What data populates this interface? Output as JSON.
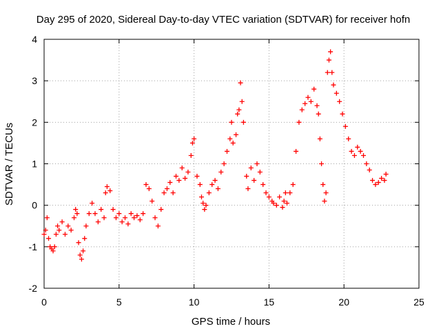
{
  "chart_data": {
    "type": "scatter",
    "title": "Day 295 of 2020, Sidereal Day-to-day VTEC variation (SDTVAR) for receiver hofn",
    "xlabel": "GPS time / hours",
    "ylabel": "SDTVAR / TECUs",
    "xlim": [
      0,
      25
    ],
    "ylim": [
      -2,
      4
    ],
    "grid": true,
    "marker": "+",
    "color": "#ff0000",
    "x_ticks": [
      "0",
      "5",
      "10",
      "15",
      "20",
      "25"
    ],
    "y_ticks": [
      "-2",
      "-1",
      "0",
      "1",
      "2",
      "3",
      "4"
    ],
    "series": [
      {
        "name": "SDTVAR",
        "points": [
          [
            0.0,
            -0.7
          ],
          [
            0.1,
            -0.6
          ],
          [
            0.2,
            -0.3
          ],
          [
            0.3,
            -0.8
          ],
          [
            0.4,
            -1.0
          ],
          [
            0.5,
            -1.05
          ],
          [
            0.6,
            -1.1
          ],
          [
            0.7,
            -1.0
          ],
          [
            0.8,
            -0.7
          ],
          [
            0.9,
            -0.5
          ],
          [
            1.0,
            -0.6
          ],
          [
            1.2,
            -0.4
          ],
          [
            1.4,
            -0.7
          ],
          [
            1.6,
            -0.5
          ],
          [
            1.8,
            -0.6
          ],
          [
            2.0,
            -0.3
          ],
          [
            2.1,
            -0.1
          ],
          [
            2.2,
            -0.2
          ],
          [
            2.3,
            -0.9
          ],
          [
            2.4,
            -1.2
          ],
          [
            2.5,
            -1.3
          ],
          [
            2.6,
            -1.1
          ],
          [
            2.7,
            -0.8
          ],
          [
            2.8,
            -0.5
          ],
          [
            3.0,
            -0.2
          ],
          [
            3.2,
            0.05
          ],
          [
            3.4,
            -0.2
          ],
          [
            3.6,
            -0.4
          ],
          [
            3.8,
            -0.1
          ],
          [
            4.0,
            -0.3
          ],
          [
            4.1,
            0.3
          ],
          [
            4.2,
            0.45
          ],
          [
            4.4,
            0.35
          ],
          [
            4.6,
            -0.1
          ],
          [
            4.8,
            -0.3
          ],
          [
            5.0,
            -0.2
          ],
          [
            5.2,
            -0.4
          ],
          [
            5.4,
            -0.3
          ],
          [
            5.6,
            -0.45
          ],
          [
            5.8,
            -0.2
          ],
          [
            6.0,
            -0.3
          ],
          [
            6.2,
            -0.25
          ],
          [
            6.4,
            -0.35
          ],
          [
            6.6,
            -0.2
          ],
          [
            6.8,
            0.5
          ],
          [
            7.0,
            0.4
          ],
          [
            7.2,
            0.1
          ],
          [
            7.4,
            -0.3
          ],
          [
            7.6,
            -0.5
          ],
          [
            7.8,
            -0.1
          ],
          [
            8.0,
            0.3
          ],
          [
            8.2,
            0.4
          ],
          [
            8.4,
            0.55
          ],
          [
            8.6,
            0.3
          ],
          [
            8.8,
            0.7
          ],
          [
            9.0,
            0.6
          ],
          [
            9.2,
            0.9
          ],
          [
            9.4,
            0.65
          ],
          [
            9.6,
            0.8
          ],
          [
            9.8,
            1.2
          ],
          [
            9.9,
            1.5
          ],
          [
            10.0,
            1.6
          ],
          [
            10.2,
            0.7
          ],
          [
            10.4,
            0.5
          ],
          [
            10.5,
            0.2
          ],
          [
            10.6,
            0.05
          ],
          [
            10.7,
            -0.1
          ],
          [
            10.8,
            0.0
          ],
          [
            11.0,
            0.3
          ],
          [
            11.2,
            0.5
          ],
          [
            11.4,
            0.6
          ],
          [
            11.6,
            0.4
          ],
          [
            11.8,
            0.8
          ],
          [
            12.0,
            1.0
          ],
          [
            12.2,
            1.3
          ],
          [
            12.4,
            1.6
          ],
          [
            12.5,
            2.0
          ],
          [
            12.6,
            1.5
          ],
          [
            12.8,
            1.7
          ],
          [
            12.9,
            2.2
          ],
          [
            13.0,
            2.3
          ],
          [
            13.1,
            2.95
          ],
          [
            13.2,
            2.5
          ],
          [
            13.3,
            2.0
          ],
          [
            13.5,
            0.7
          ],
          [
            13.6,
            0.4
          ],
          [
            13.8,
            0.9
          ],
          [
            14.0,
            0.6
          ],
          [
            14.2,
            1.0
          ],
          [
            14.4,
            0.8
          ],
          [
            14.6,
            0.5
          ],
          [
            14.8,
            0.3
          ],
          [
            15.0,
            0.2
          ],
          [
            15.2,
            0.1
          ],
          [
            15.3,
            0.05
          ],
          [
            15.5,
            0.0
          ],
          [
            15.7,
            0.2
          ],
          [
            15.9,
            -0.05
          ],
          [
            16.0,
            0.1
          ],
          [
            16.1,
            0.3
          ],
          [
            16.2,
            0.05
          ],
          [
            16.4,
            0.3
          ],
          [
            16.6,
            0.5
          ],
          [
            16.8,
            1.3
          ],
          [
            17.0,
            2.0
          ],
          [
            17.2,
            2.3
          ],
          [
            17.4,
            2.45
          ],
          [
            17.6,
            2.6
          ],
          [
            17.8,
            2.5
          ],
          [
            18.0,
            2.8
          ],
          [
            18.2,
            2.4
          ],
          [
            18.3,
            2.2
          ],
          [
            18.4,
            1.6
          ],
          [
            18.5,
            1.0
          ],
          [
            18.6,
            0.5
          ],
          [
            18.7,
            0.1
          ],
          [
            18.8,
            0.3
          ],
          [
            18.9,
            3.2
          ],
          [
            19.0,
            3.5
          ],
          [
            19.1,
            3.7
          ],
          [
            19.2,
            3.2
          ],
          [
            19.3,
            2.9
          ],
          [
            19.5,
            2.7
          ],
          [
            19.7,
            2.5
          ],
          [
            19.9,
            2.2
          ],
          [
            20.1,
            1.9
          ],
          [
            20.3,
            1.6
          ],
          [
            20.5,
            1.3
          ],
          [
            20.7,
            1.2
          ],
          [
            20.9,
            1.4
          ],
          [
            21.1,
            1.3
          ],
          [
            21.3,
            1.2
          ],
          [
            21.5,
            1.0
          ],
          [
            21.7,
            0.85
          ],
          [
            21.9,
            0.6
          ],
          [
            22.1,
            0.5
          ],
          [
            22.3,
            0.55
          ],
          [
            22.5,
            0.65
          ],
          [
            22.7,
            0.6
          ],
          [
            22.8,
            0.75
          ]
        ]
      }
    ]
  }
}
